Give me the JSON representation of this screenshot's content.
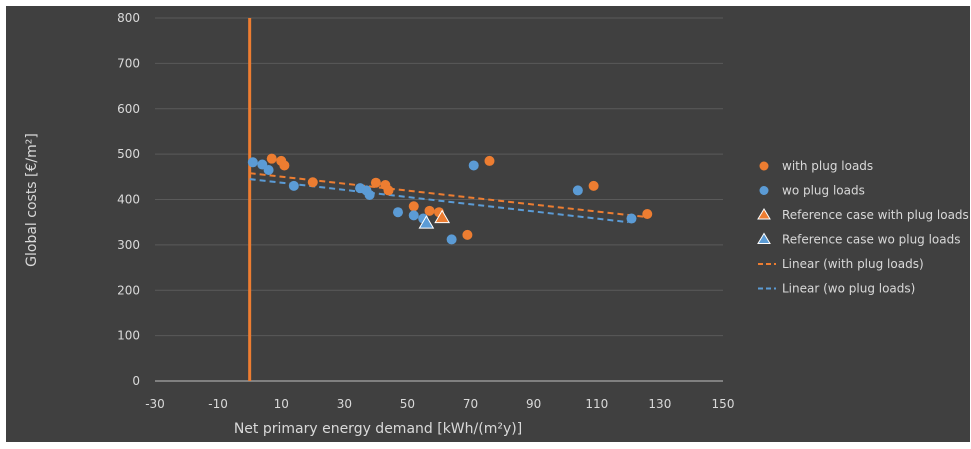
{
  "chart_data": {
    "type": "scatter",
    "title": "",
    "xlabel": "Net primary energy demand [kWh/(m²y)]",
    "ylabel": "Global costs [€/m²]",
    "xlim": [
      -30,
      150
    ],
    "ylim": [
      0,
      800
    ],
    "x_ticks": [
      "-30",
      "-10",
      "10",
      "30",
      "50",
      "70",
      "90",
      "110",
      "130",
      "150"
    ],
    "y_ticks": [
      "0",
      "100",
      "200",
      "300",
      "400",
      "500",
      "600",
      "700",
      "800"
    ],
    "grid": "horizontal",
    "legend_position": "right",
    "vertical_marker_x": 0,
    "colors": {
      "background": "#404040",
      "orange": "#ED7D31",
      "blue": "#5B9BD5",
      "gridline": "#5a5a5a",
      "text": "#d9d9d9",
      "axis": "#bfbfbf"
    },
    "series": [
      {
        "name": "with plug loads",
        "marker": "circle",
        "color": "#ED7D31",
        "points": [
          [
            7,
            490
          ],
          [
            10,
            485
          ],
          [
            11,
            475
          ],
          [
            20,
            438
          ],
          [
            40,
            437
          ],
          [
            43,
            432
          ],
          [
            44,
            420
          ],
          [
            52,
            385
          ],
          [
            57,
            375
          ],
          [
            60,
            372
          ],
          [
            69,
            322
          ],
          [
            76,
            485
          ],
          [
            109,
            430
          ],
          [
            126,
            368
          ]
        ]
      },
      {
        "name": "wo plug loads",
        "marker": "circle",
        "color": "#5B9BD5",
        "points": [
          [
            1,
            482
          ],
          [
            4,
            477
          ],
          [
            6,
            465
          ],
          [
            14,
            430
          ],
          [
            35,
            425
          ],
          [
            37,
            420
          ],
          [
            38,
            410
          ],
          [
            47,
            372
          ],
          [
            52,
            365
          ],
          [
            55,
            358
          ],
          [
            64,
            312
          ],
          [
            71,
            475
          ],
          [
            104,
            420
          ],
          [
            121,
            358
          ]
        ]
      },
      {
        "name": "Reference case with plug loads",
        "marker": "triangle",
        "color": "#ED7D31",
        "points": [
          [
            61,
            360
          ]
        ]
      },
      {
        "name": "Reference case wo plug loads",
        "marker": "triangle",
        "color": "#5B9BD5",
        "points": [
          [
            56,
            348
          ]
        ]
      },
      {
        "name": "Linear (with plug loads)",
        "type": "trendline",
        "color": "#ED7D31",
        "points": [
          [
            0,
            458
          ],
          [
            125,
            362
          ]
        ]
      },
      {
        "name": "Linear (wo plug loads)",
        "type": "trendline",
        "color": "#5B9BD5",
        "points": [
          [
            0,
            445
          ],
          [
            120,
            350
          ]
        ]
      }
    ]
  }
}
